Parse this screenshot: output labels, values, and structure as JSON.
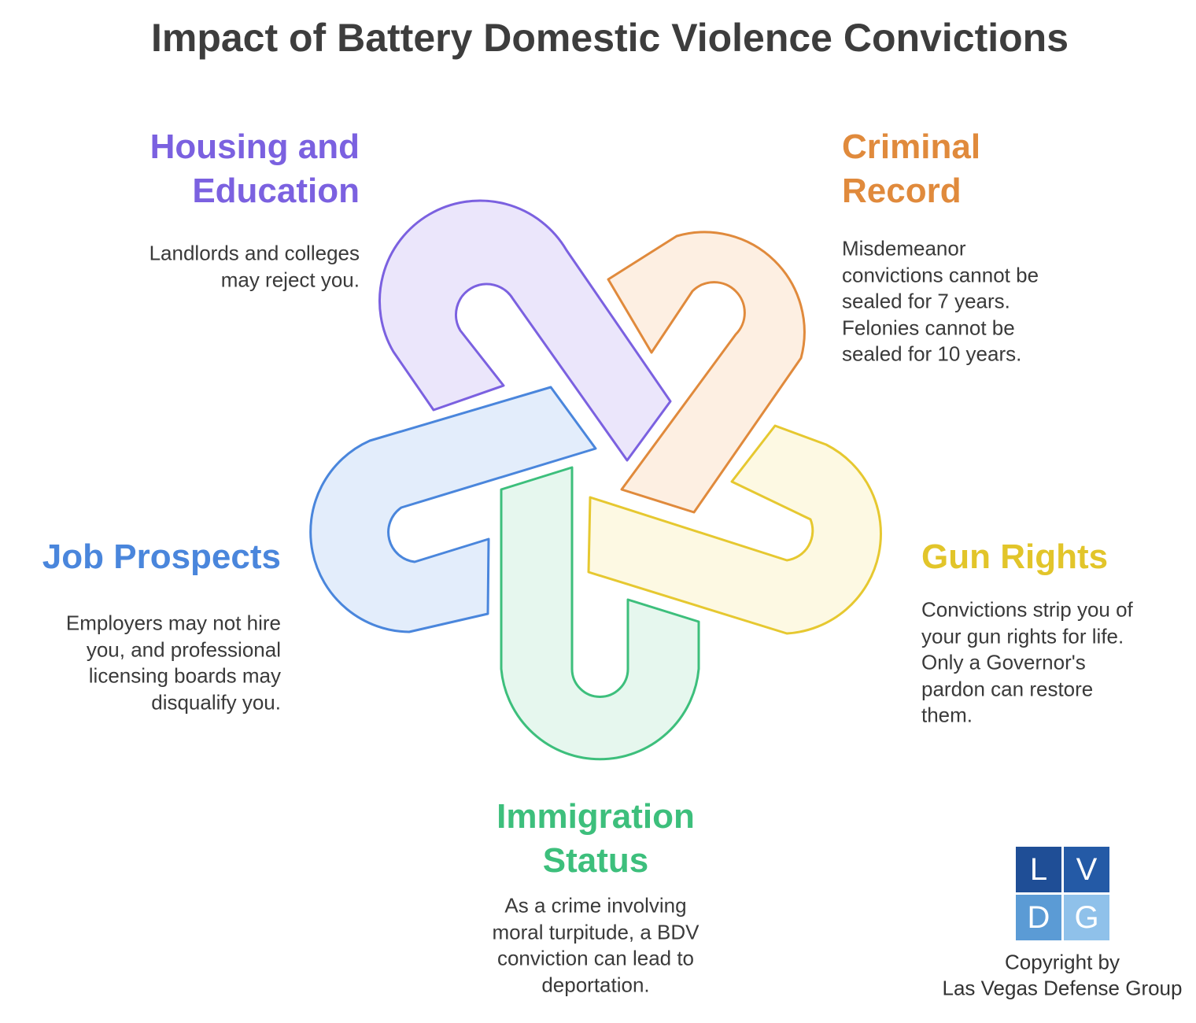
{
  "title": "Impact of Battery Domestic Violence Convictions",
  "items": [
    {
      "title": [
        "Housing and",
        "Education"
      ],
      "description": [
        "Landlords and colleges",
        "may reject you."
      ]
    },
    {
      "title": [
        "Criminal",
        "Record"
      ],
      "description": [
        "Misdemeanor",
        "convictions cannot be",
        "sealed for 7 years.",
        "Felonies cannot be",
        "sealed for 10 years."
      ]
    },
    {
      "title": [
        "Job Prospects"
      ],
      "description": [
        "Employers may not hire",
        "you, and professional",
        "licensing boards may",
        "disqualify you."
      ]
    },
    {
      "title": [
        "Gun Rights"
      ],
      "description": [
        "Convictions strip you of",
        "your gun rights for life.",
        "Only a Governor's",
        "pardon can restore",
        "them."
      ]
    },
    {
      "title": [
        "Immigration",
        "Status"
      ],
      "description": [
        "As a crime involving",
        "moral turpitude, a BDV",
        "conviction can lead to",
        "deportation."
      ]
    }
  ],
  "logo": [
    "L",
    "V",
    "D",
    "G"
  ],
  "copyright": [
    "Copyright by",
    "Las Vegas Defense Group"
  ]
}
